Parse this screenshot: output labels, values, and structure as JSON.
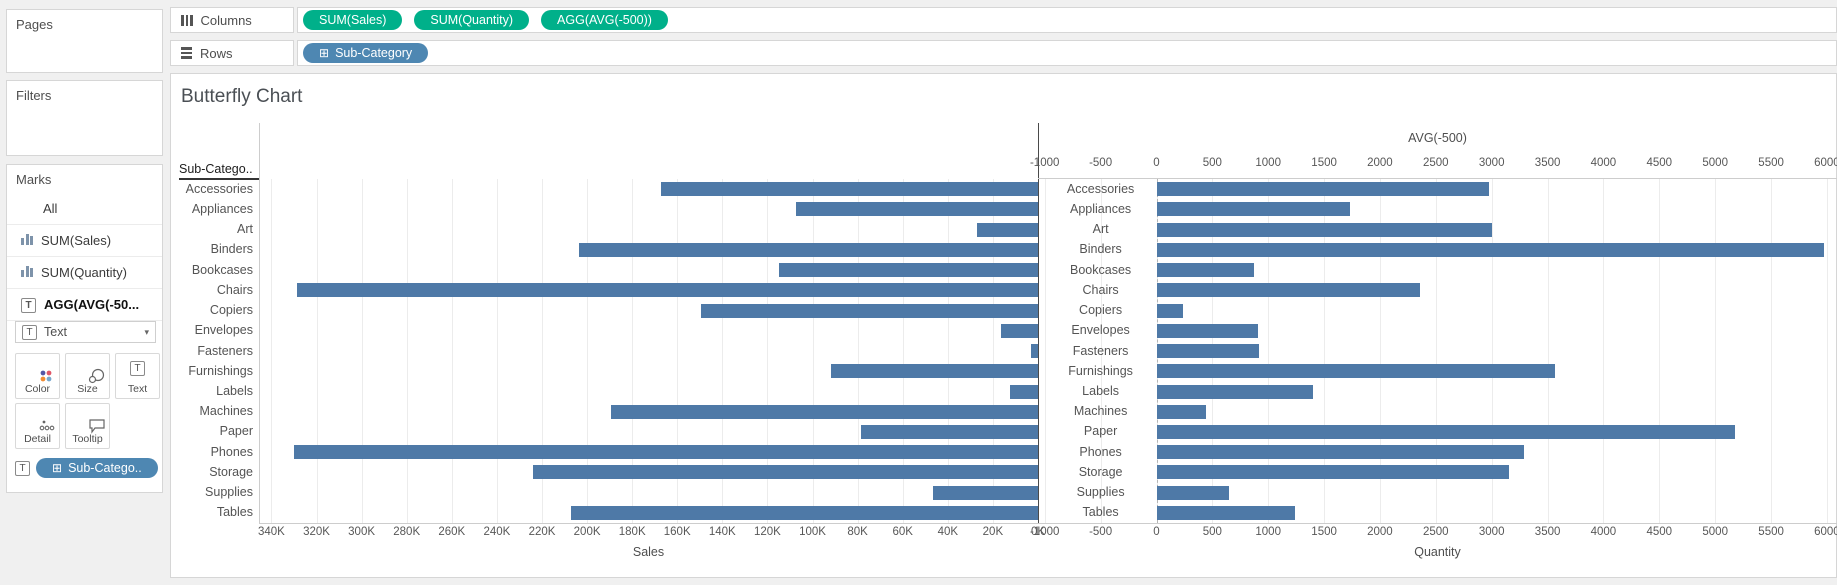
{
  "shelves": {
    "columns": {
      "label": "Columns",
      "pills": [
        {
          "label": "SUM(Sales)",
          "color": "green",
          "expandable": false
        },
        {
          "label": "SUM(Quantity)",
          "color": "green",
          "expandable": false
        },
        {
          "label": "AGG(AVG(-500))",
          "color": "green",
          "expandable": false
        }
      ]
    },
    "rows": {
      "label": "Rows",
      "pills": [
        {
          "label": "Sub-Category",
          "color": "blue",
          "expandable": true
        }
      ]
    }
  },
  "sidebar": {
    "pages": {
      "label": "Pages"
    },
    "filters": {
      "label": "Filters"
    },
    "marks": {
      "label": "Marks",
      "items": [
        {
          "label": "All",
          "icon": null,
          "selected": false
        },
        {
          "label": "SUM(Sales)",
          "icon": "bar-chart",
          "selected": false
        },
        {
          "label": "SUM(Quantity)",
          "icon": "bar-chart",
          "selected": false
        },
        {
          "label": "AGG(AVG(-50...",
          "icon": "text",
          "selected": true
        }
      ],
      "mark_type_label": "Text",
      "buttons": [
        {
          "label": "Color",
          "icon": "color"
        },
        {
          "label": "Size",
          "icon": "size"
        },
        {
          "label": "Text",
          "icon": "text"
        },
        {
          "label": "Detail",
          "icon": "detail"
        },
        {
          "label": "Tooltip",
          "icon": "tooltip"
        }
      ],
      "color_icon_dots": [
        "#5456a5",
        "#e05667",
        "#f28c33",
        "#76a7cc"
      ],
      "pill_label": "Sub-Catego.."
    }
  },
  "pill_colors": {
    "green": "#00b08a",
    "blue": "#4e87b2"
  },
  "chart_data": {
    "type": "bar",
    "orientation": "horizontal-butterfly",
    "title": "Butterfly Chart",
    "row_header": "Sub-Catego..",
    "bar_color": "#4e79a7",
    "categories": [
      "Accessories",
      "Appliances",
      "Art",
      "Binders",
      "Bookcases",
      "Chairs",
      "Copiers",
      "Envelopes",
      "Fasteners",
      "Furnishings",
      "Labels",
      "Machines",
      "Paper",
      "Phones",
      "Storage",
      "Supplies",
      "Tables"
    ],
    "series": [
      {
        "name": "SUM(Sales)",
        "values": [
          167380,
          107532,
          27119,
          203413,
          114880,
          328449,
          149528,
          16476,
          3024,
          91705,
          12486,
          189239,
          78479,
          330007,
          223844,
          46674,
          206966
        ]
      },
      {
        "name": "SUM(Quantity)",
        "values": [
          2976,
          1729,
          3000,
          5974,
          868,
          2356,
          234,
          906,
          914,
          3563,
          1400,
          440,
          5178,
          3289,
          3158,
          647,
          1241
        ]
      }
    ],
    "left_axis": {
      "label": "Sales",
      "reversed": true,
      "range": [
        345500,
        0
      ],
      "tick_labels": [
        "340K",
        "320K",
        "300K",
        "280K",
        "260K",
        "240K",
        "220K",
        "200K",
        "180K",
        "160K",
        "140K",
        "120K",
        "100K",
        "80K",
        "60K",
        "40K",
        "20K",
        "0K"
      ],
      "tick_values": [
        340000,
        320000,
        300000,
        280000,
        260000,
        240000,
        220000,
        200000,
        180000,
        160000,
        140000,
        120000,
        100000,
        80000,
        60000,
        40000,
        20000,
        0
      ]
    },
    "right_axis": {
      "label": "Quantity",
      "top_label": "AVG(-500)",
      "range": [
        -1060,
        6090
      ],
      "tick_values": [
        -1000,
        -500,
        0,
        500,
        1000,
        1500,
        2000,
        2500,
        3000,
        3500,
        4000,
        4500,
        5000,
        5500,
        6000
      ]
    },
    "text_marks_position": -500,
    "grid": true
  }
}
